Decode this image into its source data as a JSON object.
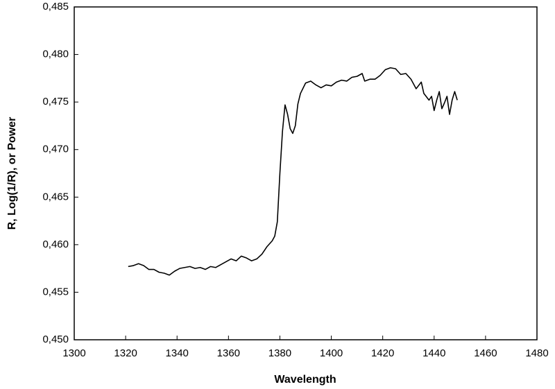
{
  "chart_data": {
    "type": "line",
    "x_label": "Wavelength",
    "y_label": "R, Log(1/R), or Power",
    "xlim": [
      1300,
      1480
    ],
    "xticks": [
      1300,
      1320,
      1340,
      1360,
      1380,
      1400,
      1420,
      1440,
      1460,
      1480
    ],
    "ylim": [
      0.45,
      0.485
    ],
    "yticks": [
      {
        "value": 0.45,
        "label": "0,450"
      },
      {
        "value": 0.455,
        "label": "0,455"
      },
      {
        "value": 0.46,
        "label": "0,460"
      },
      {
        "value": 0.465,
        "label": "0,465"
      },
      {
        "value": 0.47,
        "label": "0,470"
      },
      {
        "value": 0.475,
        "label": "0,475"
      },
      {
        "value": 0.48,
        "label": "0,480"
      },
      {
        "value": 0.485,
        "label": "0,485"
      }
    ],
    "x": [
      1321,
      1323,
      1325,
      1327,
      1329,
      1331,
      1333,
      1335,
      1337,
      1339,
      1341,
      1343,
      1345,
      1347,
      1349,
      1351,
      1353,
      1355,
      1357,
      1359,
      1361,
      1363,
      1365,
      1367,
      1369,
      1371,
      1373,
      1375,
      1377,
      1378,
      1379,
      1380,
      1381,
      1382,
      1383,
      1384,
      1385,
      1386,
      1387,
      1388,
      1390,
      1392,
      1394,
      1396,
      1398,
      1400,
      1402,
      1404,
      1406,
      1408,
      1410,
      1412,
      1413,
      1415,
      1417,
      1419,
      1421,
      1423,
      1425,
      1427,
      1429,
      1431,
      1433,
      1435,
      1436,
      1438,
      1439,
      1440,
      1441,
      1442,
      1443,
      1444,
      1445,
      1446,
      1447,
      1448,
      1449
    ],
    "series": [
      {
        "color": "#000000",
        "values": [
          0.4577,
          0.4578,
          0.458,
          0.4578,
          0.4574,
          0.4574,
          0.4571,
          0.457,
          0.4568,
          0.4572,
          0.4575,
          0.4576,
          0.4577,
          0.4575,
          0.4576,
          0.4574,
          0.4577,
          0.4576,
          0.4579,
          0.4582,
          0.4585,
          0.4583,
          0.4588,
          0.4586,
          0.4583,
          0.4585,
          0.459,
          0.4598,
          0.4604,
          0.4609,
          0.4624,
          0.4675,
          0.4719,
          0.4747,
          0.4737,
          0.4722,
          0.4717,
          0.4725,
          0.4748,
          0.4759,
          0.477,
          0.4772,
          0.4768,
          0.4765,
          0.4768,
          0.4767,
          0.4771,
          0.4773,
          0.4772,
          0.4776,
          0.4777,
          0.478,
          0.4772,
          0.4774,
          0.4774,
          0.4778,
          0.4784,
          0.4786,
          0.4785,
          0.4779,
          0.478,
          0.4774,
          0.4764,
          0.4771,
          0.4759,
          0.4752,
          0.4756,
          0.4741,
          0.4752,
          0.4761,
          0.4743,
          0.4749,
          0.4756,
          0.4737,
          0.4752,
          0.4761,
          0.4752
        ]
      }
    ]
  }
}
